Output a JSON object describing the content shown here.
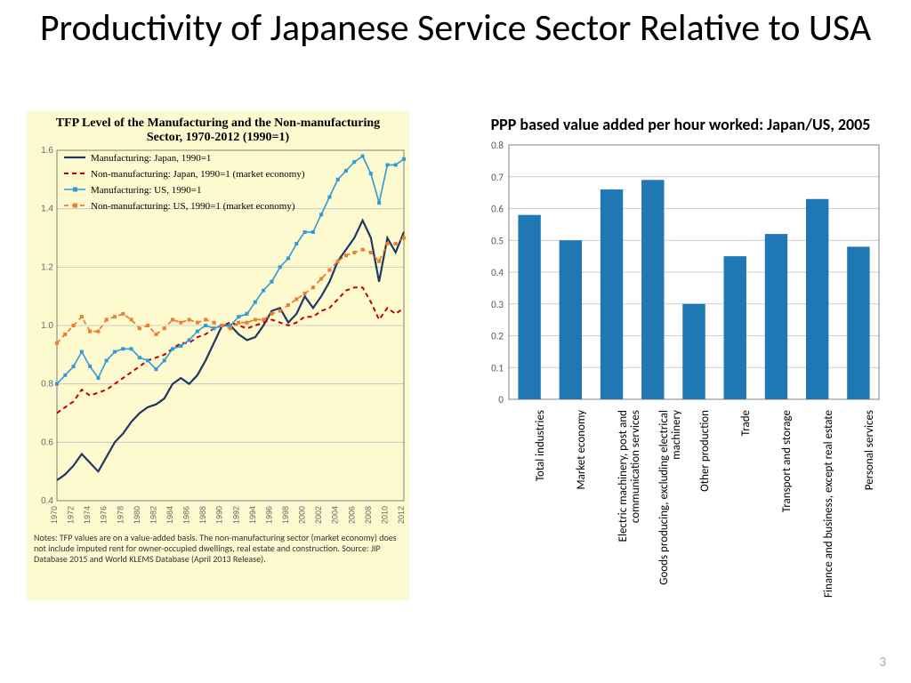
{
  "slide": {
    "title": "Productivity of Japanese Service Sector Relative to USA",
    "page_number": "3"
  },
  "tfp_chart": {
    "type": "line",
    "title": "TFP Level of the Manufacturing and the Non-manufacturing Sector, 1970-2012 (1990=1)",
    "background_color": "#fefad0",
    "plot_background": "#fefad0",
    "grid_color": "#bfbfbf",
    "axis_color": "#808080",
    "title_fontfamily": "Times New Roman, serif",
    "title_fontsize": 14,
    "xlim": [
      1970,
      2012
    ],
    "ylim": [
      0.4,
      1.6
    ],
    "yticks": [
      0.4,
      0.6,
      0.8,
      1.0,
      1.2,
      1.4,
      1.6
    ],
    "xticks": [
      1970,
      1972,
      1974,
      1976,
      1978,
      1980,
      1982,
      1984,
      1986,
      1988,
      1990,
      1992,
      1994,
      1996,
      1998,
      2000,
      2002,
      2004,
      2006,
      2008,
      2010,
      2012
    ],
    "years": [
      1970,
      1971,
      1972,
      1973,
      1974,
      1975,
      1976,
      1977,
      1978,
      1979,
      1980,
      1981,
      1982,
      1983,
      1984,
      1985,
      1986,
      1987,
      1988,
      1989,
      1990,
      1991,
      1992,
      1993,
      1994,
      1995,
      1996,
      1997,
      1998,
      1999,
      2000,
      2001,
      2002,
      2003,
      2004,
      2005,
      2006,
      2007,
      2008,
      2009,
      2010,
      2011,
      2012
    ],
    "legend_fontsize": 11,
    "legend_fontfamily": "Times New Roman, serif",
    "series": [
      {
        "label": "Manufacturing: Japan, 1990=1",
        "color": "#1f3864",
        "style": "solid",
        "marker": "none",
        "line_width": 2.2,
        "values": [
          0.47,
          0.49,
          0.52,
          0.56,
          0.53,
          0.5,
          0.55,
          0.6,
          0.63,
          0.67,
          0.7,
          0.72,
          0.73,
          0.75,
          0.8,
          0.82,
          0.8,
          0.83,
          0.88,
          0.94,
          1.0,
          1.0,
          0.97,
          0.95,
          0.96,
          1.0,
          1.05,
          1.06,
          1.01,
          1.04,
          1.1,
          1.06,
          1.1,
          1.15,
          1.22,
          1.26,
          1.3,
          1.36,
          1.3,
          1.15,
          1.3,
          1.25,
          1.32
        ]
      },
      {
        "label": "Non-manufacturing: Japan, 1990=1 (market economy)",
        "color": "#c00000",
        "style": "dashed",
        "marker": "none",
        "line_width": 2.0,
        "values": [
          0.7,
          0.72,
          0.74,
          0.78,
          0.76,
          0.77,
          0.78,
          0.8,
          0.82,
          0.84,
          0.86,
          0.88,
          0.89,
          0.9,
          0.92,
          0.94,
          0.94,
          0.96,
          0.97,
          0.99,
          1.0,
          1.01,
          1.0,
          0.99,
          1.0,
          1.01,
          1.02,
          1.01,
          1.0,
          1.01,
          1.03,
          1.03,
          1.05,
          1.06,
          1.09,
          1.12,
          1.13,
          1.13,
          1.08,
          1.02,
          1.06,
          1.04,
          1.06
        ]
      },
      {
        "label": "Manufacturing: US, 1990=1",
        "color": "#2e9bd6",
        "style": "solid",
        "marker": "square",
        "line_width": 1.6,
        "values": [
          0.8,
          0.83,
          0.86,
          0.91,
          0.86,
          0.82,
          0.88,
          0.91,
          0.92,
          0.92,
          0.89,
          0.88,
          0.85,
          0.88,
          0.92,
          0.93,
          0.95,
          0.98,
          1.0,
          0.99,
          1.0,
          1.0,
          1.03,
          1.04,
          1.08,
          1.12,
          1.15,
          1.2,
          1.23,
          1.28,
          1.32,
          1.32,
          1.38,
          1.44,
          1.5,
          1.53,
          1.56,
          1.58,
          1.52,
          1.42,
          1.55,
          1.55,
          1.57
        ]
      },
      {
        "label": "Non-manufacturing: US, 1990=1 (market economy)",
        "color": "#ed7d31",
        "style": "dashed",
        "marker": "square",
        "line_width": 1.8,
        "values": [
          0.94,
          0.97,
          1.0,
          1.03,
          0.98,
          0.98,
          1.02,
          1.03,
          1.04,
          1.02,
          0.99,
          1.0,
          0.97,
          0.99,
          1.02,
          1.01,
          1.02,
          1.01,
          1.02,
          1.01,
          1.0,
          0.99,
          1.01,
          1.01,
          1.02,
          1.02,
          1.04,
          1.05,
          1.07,
          1.09,
          1.11,
          1.13,
          1.16,
          1.19,
          1.22,
          1.24,
          1.25,
          1.26,
          1.25,
          1.22,
          1.28,
          1.28,
          1.3
        ]
      }
    ],
    "notes": "Notes: TFP values are on a value-added basis. The non-manufacturing sector (market economy) does not include imputed rent for owner-occupied dwellings, real estate and construction. Source: JIP Database 2015 and World KLEMS Database (April 2013 Release)."
  },
  "bar_chart": {
    "type": "bar",
    "title": "PPP based value added per hour worked: Japan/US, 2005",
    "title_fontsize": 18,
    "bar_color": "#1f77b4",
    "grid_color": "#bfbfbf",
    "axis_color": "#808080",
    "border_color": "#808080",
    "ylim": [
      0,
      0.8
    ],
    "yticks": [
      0,
      0.1,
      0.2,
      0.3,
      0.4,
      0.5,
      0.6,
      0.7,
      0.8
    ],
    "bar_width": 0.55,
    "categories": [
      "Total industries",
      "Market economy",
      "Electric machinery, post and communication services",
      "Goods producing, excluding electrical machinery",
      "Other production",
      "Trade",
      "Transport and storage",
      "Finance and business, except real estate",
      "Personal services"
    ],
    "values": [
      0.58,
      0.5,
      0.66,
      0.69,
      0.3,
      0.45,
      0.52,
      0.63,
      0.48
    ],
    "label_fontsize": 13,
    "ytick_fontsize": 11
  }
}
